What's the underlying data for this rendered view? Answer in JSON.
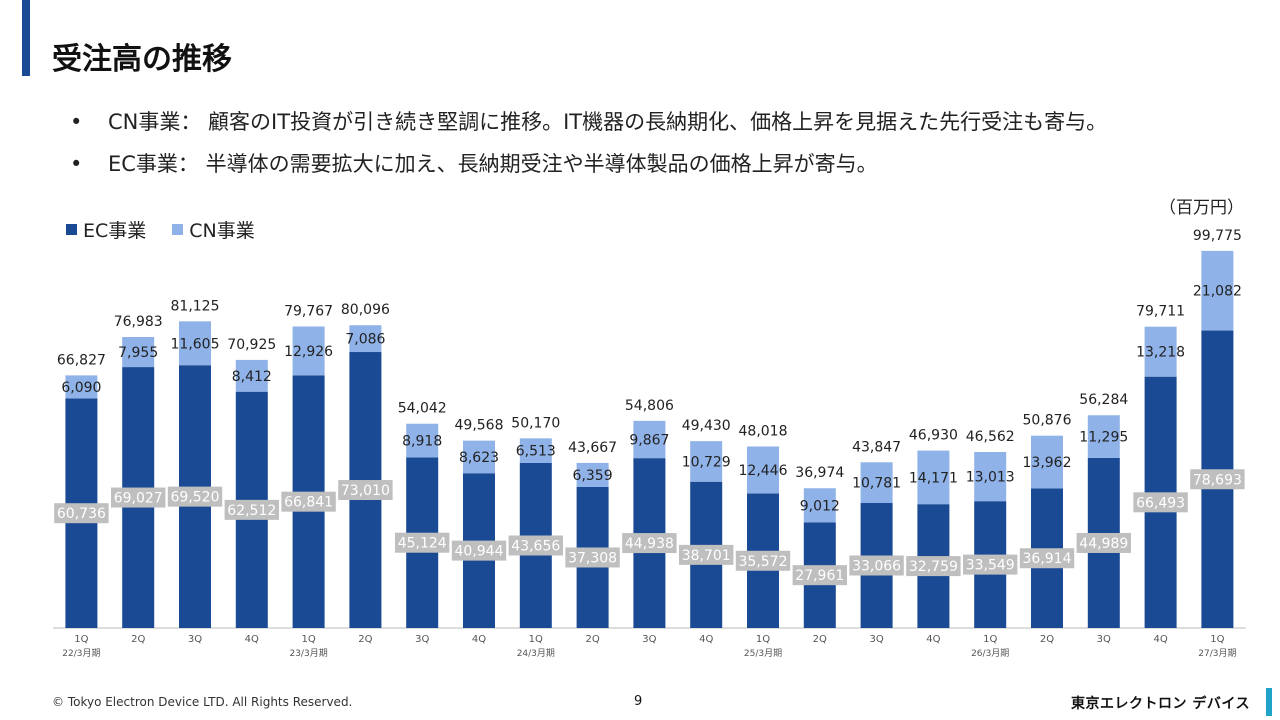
{
  "page": {
    "title": "受注高の推移",
    "bullets": [
      "CN事業： 顧客のIT投資が引き続き堅調に推移。IT機器の長納期化、価格上昇を見据えた先行受注も寄与。",
      "EC事業： 半導体の需要拡大に加え、長納期受注や半導体製品の価格上昇が寄与。"
    ],
    "bullet_symbol": "•",
    "unit": "（百万円）",
    "footer": "© Tokyo Electron Device LTD. All Rights Reserved.",
    "page_number": "9",
    "brand": "東京エレクトロン デバイス"
  },
  "chart_data": {
    "type": "bar",
    "stacked": true,
    "categories": [
      "1Q",
      "2Q",
      "3Q",
      "4Q",
      "1Q",
      "2Q",
      "3Q",
      "4Q",
      "1Q",
      "2Q",
      "3Q",
      "4Q",
      "1Q",
      "2Q",
      "3Q",
      "4Q",
      "1Q",
      "2Q",
      "3Q",
      "4Q",
      "1Q"
    ],
    "year_labels": [
      "22/3月期",
      "",
      "",
      "",
      "23/3月期",
      "",
      "",
      "",
      "24/3月期",
      "",
      "",
      "",
      "25/3月期",
      "",
      "",
      "",
      "26/3月期",
      "",
      "",
      "",
      "27/3月期"
    ],
    "series": [
      {
        "name": "EC事業",
        "color": "#1a4a94",
        "values": [
          60736,
          69027,
          69520,
          62512,
          66841,
          73010,
          45124,
          40944,
          43656,
          37308,
          44938,
          38701,
          35572,
          27961,
          33066,
          32759,
          33549,
          36914,
          44989,
          66493,
          78693
        ]
      },
      {
        "name": "CN事業",
        "color": "#8fb2e8",
        "values": [
          6090,
          7955,
          11605,
          8412,
          12926,
          7086,
          8918,
          8623,
          6513,
          6359,
          9867,
          10729,
          12446,
          9012,
          10781,
          14171,
          13013,
          13962,
          11295,
          13218,
          21082
        ]
      }
    ],
    "totals": [
      66827,
      76983,
      81125,
      70925,
      79767,
      80096,
      54042,
      49568,
      50170,
      43667,
      54806,
      49430,
      48018,
      36974,
      43847,
      46930,
      46562,
      50876,
      56284,
      79711,
      99775
    ],
    "ylim": [
      0,
      100000
    ],
    "grid": false,
    "legend": "top-left"
  }
}
